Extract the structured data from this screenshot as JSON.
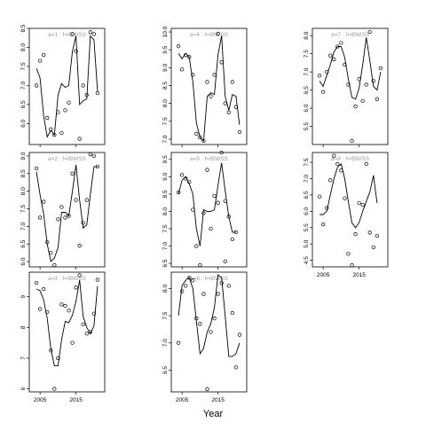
{
  "chart_data": {
    "type": "scatter",
    "xlabel": "Year",
    "panels": [
      {
        "title": "a=1 : f=IBWSS",
        "col": 0,
        "row": 0,
        "xlim": [
          2002,
          2023
        ],
        "ylim": [
          5.45,
          8.5
        ],
        "yticks": [
          6.0,
          6.5,
          7.0,
          7.5,
          8.0,
          8.5
        ],
        "ytick_labels": [
          "6.0",
          "6.5",
          "7.0",
          "7.5",
          "8.0",
          "8.5"
        ],
        "x": [
          2004,
          2005,
          2006,
          2007,
          2008,
          2009,
          2010,
          2011,
          2012,
          2013,
          2014,
          2015,
          2016,
          2017,
          2018,
          2019,
          2020,
          2021
        ],
        "observed": [
          7.0,
          7.65,
          7.8,
          6.15,
          5.85,
          5.7,
          6.3,
          5.75,
          6.35,
          6.55,
          8.35,
          7.9,
          5.6,
          7.0,
          6.75,
          8.4,
          8.35,
          6.8
        ],
        "fit": [
          7.45,
          7.2,
          6.2,
          5.65,
          5.82,
          5.7,
          6.75,
          7.05,
          6.95,
          7.0,
          7.9,
          8.3,
          6.5,
          6.6,
          6.65,
          8.3,
          8.2,
          6.85
        ]
      },
      {
        "title": "a=2 : f=IBWSS",
        "col": 0,
        "row": 1,
        "xlim": [
          2002,
          2023
        ],
        "ylim": [
          5.85,
          9.1
        ],
        "yticks": [
          6.0,
          6.5,
          7.0,
          7.5,
          8.0,
          8.5,
          9.0
        ],
        "ytick_labels": [
          "6.0",
          "6.5",
          "7.0",
          "7.5",
          "8.0",
          "8.5",
          "9.0"
        ],
        "x": [
          2004,
          2005,
          2006,
          2007,
          2008,
          2009,
          2010,
          2011,
          2012,
          2013,
          2014,
          2015,
          2016,
          2017,
          2018,
          2019,
          2020,
          2021
        ],
        "observed": [
          8.65,
          7.25,
          7.7,
          6.55,
          6.25,
          5.9,
          7.2,
          7.55,
          7.25,
          7.3,
          8.5,
          7.75,
          6.45,
          7.1,
          7.75,
          9.05,
          9.0,
          8.7
        ],
        "fit": [
          8.55,
          7.9,
          7.35,
          6.5,
          6.0,
          6.1,
          6.4,
          7.4,
          7.4,
          7.3,
          8.0,
          8.75,
          7.75,
          6.95,
          7.05,
          7.9,
          8.7,
          8.7
        ]
      },
      {
        "title": "a=3 : f=IBWSS",
        "col": 0,
        "row": 2,
        "xlim": [
          2002,
          2023
        ],
        "ylim": [
          5.9,
          9.8
        ],
        "yticks": [
          6,
          7,
          8,
          9
        ],
        "ytick_labels": [
          "6",
          "7",
          "8",
          "9"
        ],
        "x": [
          2004,
          2005,
          2006,
          2007,
          2008,
          2009,
          2010,
          2011,
          2012,
          2013,
          2014,
          2015,
          2016,
          2017,
          2018,
          2019,
          2020,
          2021
        ],
        "observed": [
          9.45,
          8.6,
          9.25,
          8.5,
          7.25,
          6.0,
          7.0,
          8.75,
          8.7,
          8.55,
          7.5,
          9.3,
          9.7,
          8.1,
          7.8,
          7.85,
          8.45,
          9.55
        ],
        "fit": [
          9.25,
          9.2,
          8.9,
          8.3,
          7.3,
          6.75,
          6.75,
          7.6,
          8.2,
          8.15,
          8.4,
          8.85,
          9.55,
          8.35,
          8.0,
          7.8,
          8.05,
          9.35
        ]
      },
      {
        "title": "a=4 : f=IBWSS",
        "col": 1,
        "row": 0,
        "xlim": [
          2002,
          2023
        ],
        "ylim": [
          6.85,
          10.1
        ],
        "yticks": [
          7.0,
          7.5,
          8.0,
          8.5,
          9.0,
          9.5,
          10.0
        ],
        "ytick_labels": [
          "7.0",
          "7.5",
          "8.0",
          "8.5",
          "9.0",
          "9.5",
          "10.0"
        ],
        "x": [
          2004,
          2005,
          2006,
          2007,
          2008,
          2009,
          2010,
          2011,
          2012,
          2013,
          2014,
          2015,
          2016,
          2017,
          2018,
          2019,
          2020,
          2021
        ],
        "observed": [
          9.6,
          8.95,
          9.35,
          9.3,
          8.8,
          7.15,
          7.05,
          6.95,
          8.6,
          8.2,
          8.8,
          9.95,
          9.15,
          8.0,
          7.75,
          8.6,
          7.9,
          7.2
        ],
        "fit": [
          9.4,
          9.25,
          9.4,
          9.3,
          8.6,
          7.45,
          7.05,
          6.95,
          8.2,
          8.3,
          8.25,
          9.35,
          9.9,
          8.2,
          7.8,
          8.25,
          8.2,
          7.4
        ]
      },
      {
        "title": "a=5 : f=IBWSS",
        "col": 1,
        "row": 1,
        "xlim": [
          2002,
          2023
        ],
        "ylim": [
          6.4,
          9.7
        ],
        "yticks": [
          6.5,
          7.0,
          7.5,
          8.0,
          8.5,
          9.0,
          9.5
        ],
        "ytick_labels": [
          "6.5",
          "7.0",
          "7.5",
          "8.0",
          "8.5",
          "9.0",
          "9.5"
        ],
        "x": [
          2004,
          2005,
          2006,
          2007,
          2008,
          2009,
          2010,
          2011,
          2012,
          2013,
          2014,
          2015,
          2016,
          2017,
          2018,
          2019,
          2020
        ],
        "observed": [
          8.55,
          9.05,
          8.95,
          8.85,
          8.05,
          7.0,
          6.45,
          7.95,
          9.2,
          7.5,
          8.45,
          8.25,
          9.7,
          8.3,
          7.85,
          7.2,
          7.4
        ],
        "fit": [
          8.5,
          8.9,
          9.0,
          8.8,
          8.5,
          7.5,
          7.0,
          8.05,
          8.0,
          8.0,
          8.05,
          8.75,
          9.4,
          8.6,
          7.85,
          7.4,
          7.4
        ]
      },
      {
        "title": "a=6 : f=IBWSS",
        "col": 1,
        "row": 2,
        "xlim": [
          2002,
          2023
        ],
        "ylim": [
          6.1,
          8.3
        ],
        "yticks": [
          6.5,
          7.0,
          7.5,
          8.0
        ],
        "ytick_labels": [
          "6.5",
          "7.0",
          "7.5",
          "8.0"
        ],
        "x": [
          2004,
          2005,
          2006,
          2007,
          2008,
          2009,
          2010,
          2011,
          2012,
          2013,
          2014,
          2015,
          2016,
          2017,
          2018,
          2019,
          2020,
          2021
        ],
        "observed": [
          7.0,
          7.95,
          8.05,
          8.2,
          8.15,
          7.45,
          7.35,
          7.9,
          6.15,
          7.2,
          7.45,
          7.9,
          8.1,
          8.5,
          8.05,
          7.55,
          6.55,
          7.15
        ],
        "fit": [
          7.5,
          8.05,
          8.15,
          8.2,
          8.0,
          7.4,
          6.8,
          6.9,
          7.2,
          7.35,
          7.65,
          8.25,
          8.2,
          7.5,
          6.75,
          6.75,
          6.8,
          7.0
        ]
      },
      {
        "title": "a=7 : f=IBWSS",
        "col": 2,
        "row": 0,
        "xlim": [
          2002,
          2023
        ],
        "ylim": [
          5.0,
          8.2
        ],
        "yticks": [
          5.5,
          6.0,
          6.5,
          7.0,
          7.5,
          8.0
        ],
        "ytick_labels": [
          "5.5",
          "6.0",
          "6.5",
          "7.0",
          "7.5",
          "8.0"
        ],
        "x": [
          2004,
          2005,
          2006,
          2007,
          2008,
          2009,
          2010,
          2011,
          2012,
          2013,
          2014,
          2015,
          2016,
          2017,
          2018,
          2019,
          2020,
          2021
        ],
        "observed": [
          6.9,
          6.45,
          7.0,
          7.45,
          7.35,
          7.7,
          7.8,
          7.2,
          6.65,
          5.1,
          6.05,
          6.8,
          6.2,
          6.65,
          8.1,
          6.75,
          6.25,
          7.1
        ],
        "fit": [
          6.75,
          6.6,
          6.9,
          7.2,
          7.55,
          7.7,
          7.7,
          7.4,
          6.8,
          6.3,
          6.25,
          6.55,
          7.2,
          7.95,
          7.3,
          6.6,
          6.5,
          7.0
        ]
      },
      {
        "title": "a=8 : f=IBWSS",
        "col": 2,
        "row": 1,
        "xlim": [
          2002,
          2023
        ],
        "ylim": [
          4.3,
          7.8
        ],
        "yticks": [
          4.5,
          5.0,
          5.5,
          6.0,
          6.5,
          7.0,
          7.5
        ],
        "ytick_labels": [
          "4.5",
          "5.0",
          "5.5",
          "6.0",
          "6.5",
          "7.0",
          "7.5"
        ],
        "x": [
          2004,
          2005,
          2006,
          2007,
          2008,
          2009,
          2010,
          2011,
          2012,
          2013,
          2014,
          2015,
          2016,
          2017,
          2018,
          2019,
          2020
        ],
        "observed": [
          6.45,
          5.6,
          6.1,
          6.95,
          7.7,
          7.45,
          7.25,
          6.4,
          4.7,
          4.35,
          5.3,
          6.25,
          6.2,
          7.45,
          5.35,
          4.9,
          5.25
        ],
        "fit": [
          5.9,
          5.9,
          6.0,
          6.5,
          7.0,
          7.35,
          7.45,
          7.0,
          6.3,
          5.65,
          5.5,
          5.65,
          6.0,
          6.3,
          6.6,
          7.1,
          6.25
        ]
      }
    ],
    "xticks": [
      2005,
      2015
    ],
    "xtick_labels": [
      "2005",
      "2015"
    ],
    "xtick_label_panels": [
      2,
      5,
      7
    ]
  }
}
